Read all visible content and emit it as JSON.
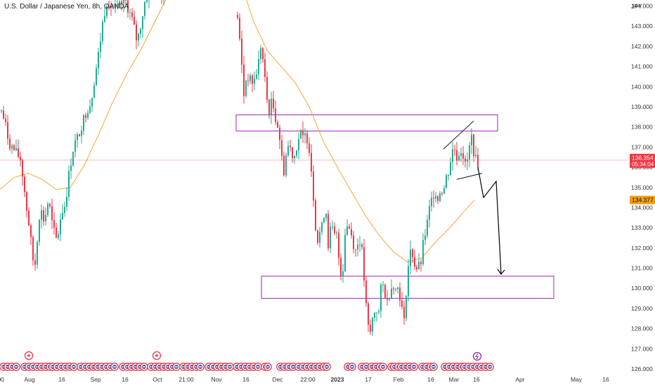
{
  "title": "U.S. Dollar / Japanese Yen, 8h, OANDA",
  "currency": "JPY",
  "chart_data": {
    "type": "candlestick",
    "symbol": "USD/JPY",
    "interval": "8h",
    "source": "OANDA",
    "y_unit": "JPY",
    "ylim": [
      125.7,
      145.3
    ],
    "y_ticks": [
      "144.000",
      "143.000",
      "142.000",
      "141.000",
      "140.000",
      "139.000",
      "138.000",
      "137.000",
      "136.000",
      "135.000",
      "134.000",
      "133.000",
      "132.000",
      "131.000",
      "130.000",
      "129.000",
      "128.000",
      "127.000",
      "126.000"
    ],
    "x_ticks": [
      ":00",
      "Aug",
      "16",
      "Sep",
      "16",
      "Oct",
      "21:00",
      "Nov",
      "16",
      "Dec",
      "22:00",
      "2023",
      "17",
      "Feb",
      "16",
      "Mar",
      "16",
      "Apr",
      "May",
      "16"
    ],
    "bold_x_ticks": [
      "2023"
    ],
    "price_series": [
      [
        0,
        138.9
      ],
      [
        6,
        138.2
      ],
      [
        12,
        137.2
      ],
      [
        20,
        136.8
      ],
      [
        28,
        136.4
      ],
      [
        32,
        135.4
      ],
      [
        36,
        134.2
      ],
      [
        40,
        133.2
      ],
      [
        44,
        132.0
      ],
      [
        48,
        130.8
      ],
      [
        52,
        132.5
      ],
      [
        56,
        134.0
      ],
      [
        62,
        133.3
      ],
      [
        68,
        134.4
      ],
      [
        74,
        133.0
      ],
      [
        80,
        132.3
      ],
      [
        86,
        133.7
      ],
      [
        92,
        134.2
      ],
      [
        98,
        135.9
      ],
      [
        104,
        137.1
      ],
      [
        110,
        137.5
      ],
      [
        116,
        138.2
      ],
      [
        122,
        138.8
      ],
      [
        128,
        139.2
      ],
      [
        134,
        140.5
      ],
      [
        140,
        141.8
      ],
      [
        146,
        143.4
      ],
      [
        152,
        144.4
      ],
      [
        158,
        143.9
      ],
      [
        164,
        143.8
      ],
      [
        170,
        144.0
      ],
      [
        176,
        144.4
      ],
      [
        182,
        143.8
      ],
      [
        188,
        143.2
      ],
      [
        194,
        142.2
      ],
      [
        200,
        143.2
      ],
      [
        206,
        144.4
      ],
      [
        212,
        144.6
      ],
      [
        220,
        144.7
      ],
      [
        228,
        144.7
      ],
      [
        236,
        144.6
      ],
      [
        242,
        145.0
      ],
      [
        335,
        144.6
      ],
      [
        338,
        143.0
      ],
      [
        342,
        141.5
      ],
      [
        346,
        139.6
      ],
      [
        350,
        140.6
      ],
      [
        355,
        140.3
      ],
      [
        360,
        140.2
      ],
      [
        366,
        141.0
      ],
      [
        370,
        142.0
      ],
      [
        374,
        141.1
      ],
      [
        378,
        139.5
      ],
      [
        382,
        138.8
      ],
      [
        386,
        139.3
      ],
      [
        390,
        138.6
      ],
      [
        394,
        138.1
      ],
      [
        398,
        137.2
      ],
      [
        402,
        135.6
      ],
      [
        406,
        136.6
      ],
      [
        410,
        137.2
      ],
      [
        414,
        136.7
      ],
      [
        418,
        136.6
      ],
      [
        422,
        137.2
      ],
      [
        426,
        137.7
      ],
      [
        430,
        137.4
      ],
      [
        434,
        137.6
      ],
      [
        438,
        137.3
      ],
      [
        442,
        135.9
      ],
      [
        446,
        134.1
      ],
      [
        450,
        132.2
      ],
      [
        454,
        132.8
      ],
      [
        458,
        133.1
      ],
      [
        462,
        134.3
      ],
      [
        466,
        132.2
      ],
      [
        470,
        133.1
      ],
      [
        474,
        132.6
      ],
      [
        478,
        132.6
      ],
      [
        482,
        131.2
      ],
      [
        486,
        130.4
      ],
      [
        490,
        132.8
      ],
      [
        494,
        133.2
      ],
      [
        498,
        132.8
      ],
      [
        502,
        132.2
      ],
      [
        506,
        131.8
      ],
      [
        510,
        132.6
      ],
      [
        514,
        131.8
      ],
      [
        518,
        130.0
      ],
      [
        522,
        128.1
      ],
      [
        526,
        127.8
      ],
      [
        530,
        128.7
      ],
      [
        534,
        129.0
      ],
      [
        538,
        128.8
      ],
      [
        542,
        130.3
      ],
      [
        546,
        129.9
      ],
      [
        550,
        129.3
      ],
      [
        554,
        129.9
      ],
      [
        558,
        130.3
      ],
      [
        562,
        129.9
      ],
      [
        566,
        130.1
      ],
      [
        570,
        129.2
      ],
      [
        574,
        128.3
      ],
      [
        578,
        130.4
      ],
      [
        582,
        131.8
      ],
      [
        586,
        131.7
      ],
      [
        590,
        131.0
      ],
      [
        594,
        131.0
      ],
      [
        598,
        131.3
      ],
      [
        602,
        132.4
      ],
      [
        606,
        133.0
      ],
      [
        610,
        133.9
      ],
      [
        614,
        134.5
      ],
      [
        618,
        134.9
      ],
      [
        622,
        134.4
      ],
      [
        626,
        135.0
      ],
      [
        630,
        134.8
      ],
      [
        634,
        135.5
      ],
      [
        638,
        135.9
      ],
      [
        642,
        136.8
      ],
      [
        646,
        136.9
      ],
      [
        650,
        136.4
      ],
      [
        654,
        137.0
      ],
      [
        658,
        136.6
      ],
      [
        662,
        135.9
      ],
      [
        666,
        136.8
      ],
      [
        670,
        137.5
      ],
      [
        674,
        136.6
      ],
      [
        678,
        136.1
      ],
      [
        680,
        136.354
      ]
    ],
    "last_price": "136.354",
    "countdown": "05:34:04",
    "moving_average_value": "134.377",
    "moving_average_series": [
      [
        0,
        134.9
      ],
      [
        20,
        135.5
      ],
      [
        40,
        135.7
      ],
      [
        60,
        135.4
      ],
      [
        80,
        134.9
      ],
      [
        100,
        135.0
      ],
      [
        120,
        136.1
      ],
      [
        140,
        137.6
      ],
      [
        160,
        139.2
      ],
      [
        180,
        140.6
      ],
      [
        200,
        141.8
      ],
      [
        220,
        143.2
      ],
      [
        240,
        144.6
      ],
      [
        260,
        145.2
      ],
      [
        340,
        145.5
      ],
      [
        360,
        143.3
      ],
      [
        380,
        141.8
      ],
      [
        400,
        141.0
      ],
      [
        420,
        140.2
      ],
      [
        440,
        139.0
      ],
      [
        460,
        137.3
      ],
      [
        480,
        136.0
      ],
      [
        500,
        134.8
      ],
      [
        520,
        133.6
      ],
      [
        540,
        132.6
      ],
      [
        560,
        131.8
      ],
      [
        580,
        131.3
      ],
      [
        600,
        131.5
      ],
      [
        620,
        132.3
      ],
      [
        640,
        133.0
      ],
      [
        660,
        133.8
      ],
      [
        675,
        134.377
      ]
    ],
    "zones": [
      {
        "x0": 336,
        "x1": 708,
        "top": 138.6,
        "bottom": 137.8
      },
      {
        "x0": 372,
        "x1": 788,
        "top": 130.6,
        "bottom": 129.5
      }
    ],
    "wedge_lines": [
      [
        [
          631,
          136.9
        ],
        [
          674,
          138.3
        ]
      ],
      [
        [
          650,
          135.4
        ],
        [
          686,
          135.7
        ]
      ]
    ],
    "projection_path": [
      [
        680,
        136.0
      ],
      [
        688,
        134.5
      ],
      [
        706,
        135.3
      ],
      [
        713,
        130.7
      ]
    ],
    "event_markers": {
      "first_row_special": [
        41,
        223
      ],
      "second_row_special": [
        679
      ],
      "row_xs": [
        0,
        6,
        12,
        18,
        30,
        36,
        42,
        48,
        54,
        60,
        66,
        70,
        76,
        82,
        88,
        94,
        100,
        110,
        116,
        122,
        128,
        134,
        140,
        146,
        152,
        158,
        170,
        176,
        182,
        188,
        194,
        200,
        210,
        216,
        222,
        228,
        234,
        240,
        246,
        256,
        262,
        268,
        274,
        280,
        292,
        298,
        304,
        310,
        316,
        322,
        332,
        338,
        344,
        350,
        356,
        362,
        372,
        376,
        394,
        400,
        406,
        412,
        420,
        426,
        432,
        438,
        444,
        450,
        456,
        460,
        490,
        496,
        510,
        516,
        524,
        530,
        536,
        540,
        552,
        556,
        562,
        566,
        572,
        578,
        584,
        596,
        602,
        608,
        612,
        628,
        634,
        640,
        646,
        652,
        656,
        662,
        668,
        674,
        680,
        686,
        692
      ]
    },
    "colors": {
      "up": "#22ab94",
      "down": "#f23645",
      "moving_average": "#f7a53a",
      "zone": "#9c27b0",
      "price_line": "#f23645",
      "ma_label": "#f39c12",
      "text": "#131722",
      "axis_text": "#333333"
    }
  }
}
